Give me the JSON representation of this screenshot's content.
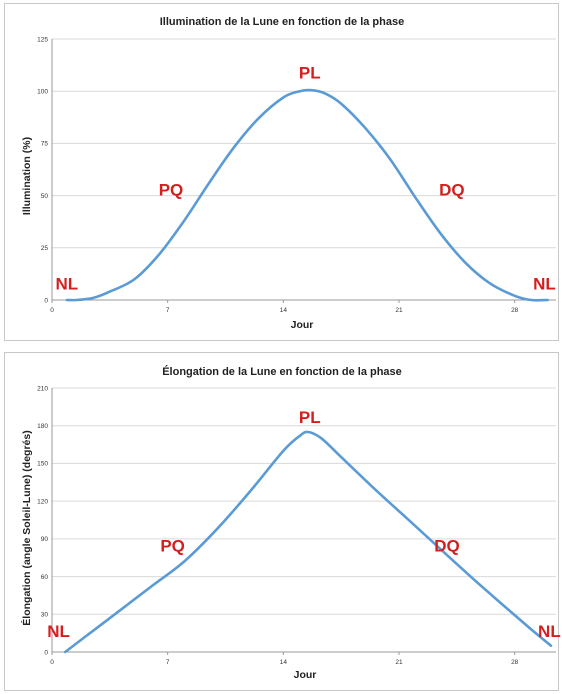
{
  "chart_data": [
    {
      "type": "line",
      "title": "Illumination de la Lune en fonction de la phase",
      "xlabel": "Jour",
      "ylabel": "Illumination (%)",
      "xlim": [
        0,
        30.5
      ],
      "ylim": [
        0,
        125
      ],
      "xticks": [
        0,
        7,
        14,
        21,
        28
      ],
      "yticks": [
        0,
        25,
        50,
        75,
        100,
        125
      ],
      "grid": true,
      "series": [
        {
          "x": [
            0.9,
            1.5,
            2.5,
            3.5,
            5,
            6.5,
            8,
            9.5,
            11,
            12.5,
            14,
            15,
            15.7,
            16.5,
            17.5,
            19,
            20.5,
            22,
            23.5,
            25,
            26.5,
            28,
            29,
            30
          ],
          "values": [
            0,
            0,
            1,
            4,
            10,
            22,
            38,
            56,
            73,
            87,
            97,
            100,
            100.5,
            99,
            94,
            82,
            67,
            49,
            32,
            18,
            8,
            2,
            0,
            0
          ]
        }
      ],
      "annotations": [
        {
          "text": "NL",
          "x": 0.9,
          "y": 5
        },
        {
          "text": "PQ",
          "x": 7.2,
          "y": 50
        },
        {
          "text": "PL",
          "x": 15.6,
          "y": 106
        },
        {
          "text": "DQ",
          "x": 24.2,
          "y": 50
        },
        {
          "text": "NL",
          "x": 29.8,
          "y": 5
        }
      ]
    },
    {
      "type": "line",
      "title": "Élongation de la Lune en fonction de la phase",
      "xlabel": "Jour",
      "ylabel": "Élongation (angle Soleil-Lune) (degrés)",
      "xlim": [
        0,
        30.5
      ],
      "ylim": [
        0,
        210
      ],
      "xticks": [
        0,
        7,
        14,
        21,
        28
      ],
      "yticks": [
        0,
        30,
        60,
        90,
        120,
        150,
        180,
        210
      ],
      "grid": true,
      "series": [
        {
          "x": [
            0.8,
            2,
            4,
            6,
            8,
            10,
            12,
            14,
            15,
            15.5,
            16.3,
            17.5,
            19.5,
            21.5,
            23.5,
            25.5,
            27.5,
            29,
            30.2
          ],
          "values": [
            0,
            12,
            32,
            52,
            72,
            98,
            128,
            160,
            172,
            175,
            170,
            155,
            130,
            106,
            82,
            58,
            35,
            18,
            5
          ]
        }
      ],
      "annotations": [
        {
          "text": "NL",
          "x": 0.4,
          "y": 12
        },
        {
          "text": "PQ",
          "x": 7.3,
          "y": 80
        },
        {
          "text": "PL",
          "x": 15.6,
          "y": 182
        },
        {
          "text": "DQ",
          "x": 23.9,
          "y": 80
        },
        {
          "text": "NL",
          "x": 30.1,
          "y": 12
        }
      ]
    }
  ]
}
